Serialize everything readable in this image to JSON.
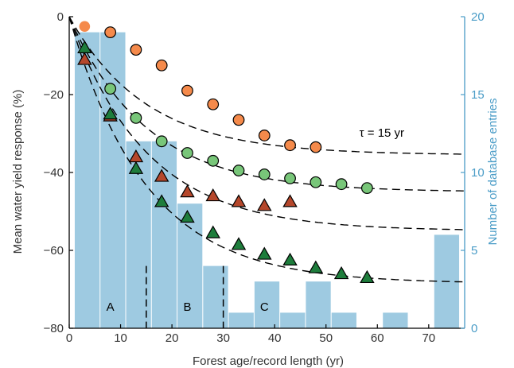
{
  "chart_data": {
    "type": "scatter",
    "xlabel": "Forest age/record length (yr)",
    "ylabel_left": "Mean water yield response (%)",
    "ylabel_right": "Number of database entries",
    "xlim": [
      0,
      77
    ],
    "ylim_left": [
      -80,
      0
    ],
    "ylim_right": [
      0,
      20
    ],
    "x_ticks": [
      "0",
      "10",
      "20",
      "30",
      "40",
      "50",
      "60",
      "70"
    ],
    "y_left_ticks": [
      "0",
      "−20",
      "−40",
      "−60",
      "−80"
    ],
    "y_right_ticks": [
      "0",
      "5",
      "10",
      "15",
      "20"
    ],
    "colors": {
      "bars": "#9ecae1",
      "right_axis": "#4a9cc7",
      "orange": "#f58a4b",
      "light_green": "#78c679",
      "red_brown": "#b5472b",
      "dark_green": "#1e7d3c"
    },
    "histogram": {
      "bin_width": 5,
      "bins": [
        {
          "x0": 1,
          "count": 19
        },
        {
          "x0": 6,
          "count": 19
        },
        {
          "x0": 11,
          "count": 12
        },
        {
          "x0": 16,
          "count": 12
        },
        {
          "x0": 21,
          "count": 8
        },
        {
          "x0": 26,
          "count": 4
        },
        {
          "x0": 31,
          "count": 1
        },
        {
          "x0": 36,
          "count": 3
        },
        {
          "x0": 41,
          "count": 1
        },
        {
          "x0": 46,
          "count": 3
        },
        {
          "x0": 51,
          "count": 1
        },
        {
          "x0": 61,
          "count": 1
        },
        {
          "x0": 71,
          "count": 6
        }
      ]
    },
    "region_labels": [
      {
        "text": "A",
        "x": 8
      },
      {
        "text": "B",
        "x": 23
      },
      {
        "text": "C",
        "x": 38
      }
    ],
    "region_boundaries": [
      15,
      30
    ],
    "series": [
      {
        "marker": "circle",
        "color_key": "orange",
        "points": [
          [
            8,
            -4
          ],
          [
            13,
            -8.5
          ],
          [
            18,
            -12.5
          ],
          [
            23,
            -19
          ],
          [
            28,
            -22.5
          ],
          [
            33,
            -26.5
          ],
          [
            38,
            -30.5
          ],
          [
            43,
            -33
          ],
          [
            48,
            -33.5
          ]
        ]
      },
      {
        "marker": "circle",
        "color_key": "light_green",
        "points": [
          [
            8,
            -18.5
          ],
          [
            13,
            -26
          ],
          [
            18,
            -32
          ],
          [
            23,
            -35
          ],
          [
            28,
            -37
          ],
          [
            33,
            -39.5
          ],
          [
            38,
            -40.5
          ],
          [
            43,
            -41.5
          ],
          [
            48,
            -42.5
          ],
          [
            53,
            -43
          ],
          [
            58,
            -44
          ]
        ]
      },
      {
        "marker": "triangle",
        "color_key": "red_brown",
        "points": [
          [
            3,
            -11
          ],
          [
            8,
            -25.5
          ],
          [
            13,
            -36
          ],
          [
            18,
            -41
          ],
          [
            23,
            -45
          ],
          [
            28,
            -46
          ],
          [
            33,
            -47.5
          ],
          [
            38,
            -48.5
          ],
          [
            43,
            -47.5
          ]
        ]
      },
      {
        "marker": "triangle",
        "color_key": "dark_green",
        "points": [
          [
            3,
            -8
          ],
          [
            8,
            -25
          ],
          [
            13,
            -39
          ],
          [
            18,
            -47.5
          ],
          [
            23,
            -51.5
          ],
          [
            28,
            -55.5
          ],
          [
            33,
            -58.5
          ],
          [
            38,
            -61
          ],
          [
            43,
            -62.5
          ],
          [
            48,
            -64.5
          ],
          [
            53,
            -66
          ],
          [
            58,
            -67
          ]
        ]
      }
    ],
    "single_points": [
      {
        "marker": "circle",
        "color_key": "orange",
        "x": 3,
        "y": -2.5,
        "outline": false
      }
    ],
    "fit_curves": [
      {
        "asymptote": -35.5,
        "tau": 15,
        "label": "τ = 15 yr"
      },
      {
        "asymptote": -45,
        "tau": 15
      },
      {
        "asymptote": -55,
        "tau": 15
      },
      {
        "asymptote": -68.5,
        "tau": 15
      }
    ]
  }
}
